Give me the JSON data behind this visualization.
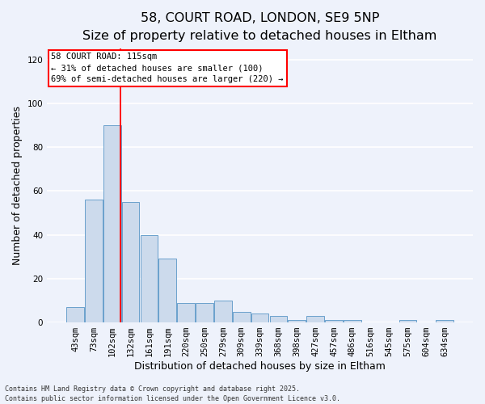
{
  "title_line1": "58, COURT ROAD, LONDON, SE9 5NP",
  "title_line2": "Size of property relative to detached houses in Eltham",
  "xlabel": "Distribution of detached houses by size in Eltham",
  "ylabel": "Number of detached properties",
  "categories": [
    "43sqm",
    "73sqm",
    "102sqm",
    "132sqm",
    "161sqm",
    "191sqm",
    "220sqm",
    "250sqm",
    "279sqm",
    "309sqm",
    "339sqm",
    "368sqm",
    "398sqm",
    "427sqm",
    "457sqm",
    "486sqm",
    "516sqm",
    "545sqm",
    "575sqm",
    "604sqm",
    "634sqm"
  ],
  "values": [
    7,
    56,
    90,
    55,
    40,
    29,
    9,
    9,
    10,
    5,
    4,
    3,
    1,
    3,
    1,
    1,
    0,
    0,
    1,
    0,
    1
  ],
  "bar_color": "#ccdaec",
  "bar_edge_color": "#6aa0cc",
  "background_color": "#eef2fb",
  "grid_color": "#ffffff",
  "ylim": [
    0,
    125
  ],
  "yticks": [
    0,
    20,
    40,
    60,
    80,
    100,
    120
  ],
  "annotation_text": "58 COURT ROAD: 115sqm\n← 31% of detached houses are smaller (100)\n69% of semi-detached houses are larger (220) →",
  "footer_line1": "Contains HM Land Registry data © Crown copyright and database right 2025.",
  "footer_line2": "Contains public sector information licensed under the Open Government Licence v3.0.",
  "title_fontsize": 11.5,
  "subtitle_fontsize": 10.5,
  "tick_fontsize": 7.5,
  "ylabel_fontsize": 9,
  "xlabel_fontsize": 9,
  "annotation_fontsize": 7.5,
  "footer_fontsize": 6
}
